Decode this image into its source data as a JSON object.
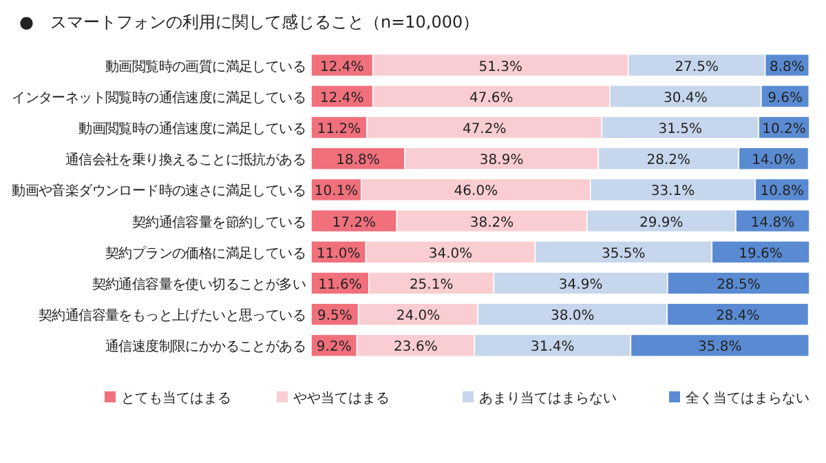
{
  "chart_data": {
    "type": "bar",
    "orientation": "horizontal",
    "stacked": true,
    "title": "●　スマートフォンの利用に関して感じること（n=10,000）",
    "categories": [
      "動画閲覧時の画質に満足している",
      "インターネット閲覧時の通信速度に満足している",
      "動画閲覧時の通信速度に満足している",
      "通信会社を乗り換えることに抵抗がある",
      "動画や音楽ダウンロード時の速さに満足している",
      "契約通信容量を節約している",
      "契約プランの価格に満足している",
      "契約通信容量を使い切ることが多い",
      "契約通信容量をもっと上げたいと思っている",
      "通信速度制限にかかることがある"
    ],
    "series": [
      {
        "name": "とても当てはまる",
        "color": "#f0707c",
        "values": [
          12.4,
          12.4,
          11.2,
          18.8,
          10.1,
          17.2,
          11.0,
          11.6,
          9.5,
          9.2
        ],
        "value_labels": [
          "12.4%",
          "12.4%",
          "11.2%",
          "18.8%",
          "10.1%",
          "17.2%",
          "11.0%",
          "11.6%",
          "9.5%",
          "9.2%"
        ]
      },
      {
        "name": "やや当てはまる",
        "color": "#f9cdd1",
        "values": [
          51.3,
          47.6,
          47.2,
          38.9,
          46.0,
          38.2,
          34.0,
          25.1,
          24.0,
          23.6
        ],
        "value_labels": [
          "51.3%",
          "47.6%",
          "47.2%",
          "38.9%",
          "46.0%",
          "38.2%",
          "34.0%",
          "25.1%",
          "24.0%",
          "23.6%"
        ]
      },
      {
        "name": "あまり当てはまらない",
        "color": "#c6d6ec",
        "values": [
          27.5,
          30.4,
          31.5,
          28.2,
          33.1,
          29.9,
          35.5,
          34.9,
          38.0,
          31.4
        ],
        "value_labels": [
          "27.5%",
          "30.4%",
          "31.5%",
          "28.2%",
          "33.1%",
          "29.9%",
          "35.5%",
          "34.9%",
          "38.0%",
          "31.4%"
        ]
      },
      {
        "name": "全く当てはまらない",
        "color": "#5a8bd2",
        "values": [
          8.8,
          9.6,
          10.2,
          14.0,
          10.8,
          14.8,
          19.6,
          28.5,
          28.4,
          35.8
        ],
        "value_labels": [
          "8.8%",
          "9.6%",
          "10.2%",
          "14.0%",
          "10.8%",
          "14.8%",
          "19.6%",
          "28.5%",
          "28.4%",
          "35.8%"
        ]
      }
    ],
    "legend": "bottom"
  }
}
